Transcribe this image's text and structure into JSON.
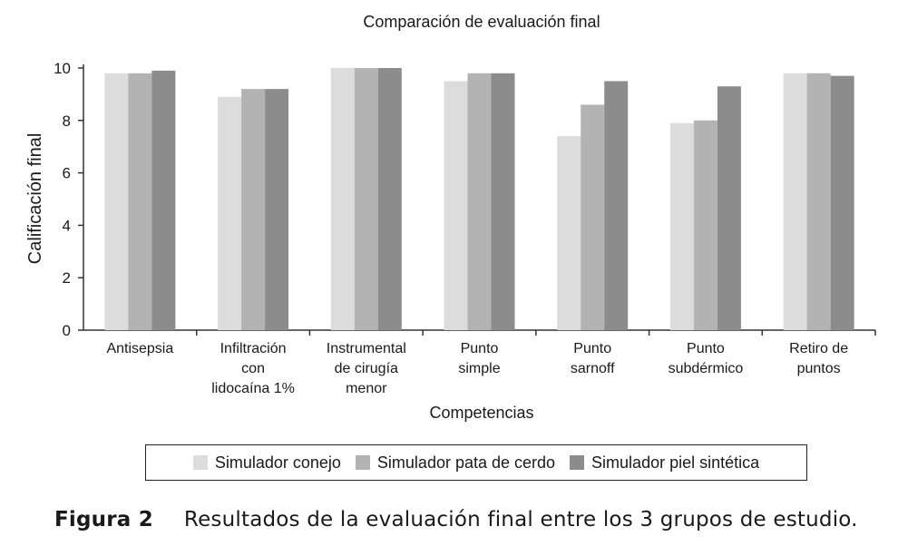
{
  "chart_data": {
    "type": "bar",
    "title": "Comparación de evaluación final",
    "xlabel": "Competencias",
    "ylabel": "Calificación final",
    "ylim": [
      0,
      10
    ],
    "yticks": [
      0,
      2,
      4,
      6,
      8,
      10
    ],
    "grid": false,
    "legend_position": "bottom",
    "categories": [
      [
        "Antisepsia"
      ],
      [
        "Infiltración",
        "con",
        "lidocaína 1%"
      ],
      [
        "Instrumental",
        "de cirugía",
        "menor"
      ],
      [
        "Punto",
        "simple"
      ],
      [
        "Punto",
        "sarnoff"
      ],
      [
        "Punto",
        "subdérmico"
      ],
      [
        "Retiro de",
        "puntos"
      ]
    ],
    "series": [
      {
        "name": "Simulador conejo",
        "color": "#dcdcdc",
        "values": [
          9.8,
          8.9,
          10.0,
          9.5,
          7.4,
          7.9,
          9.8
        ]
      },
      {
        "name": "Simulador pata de cerdo",
        "color": "#b3b3b3",
        "values": [
          9.8,
          9.2,
          10.0,
          9.8,
          8.6,
          8.0,
          9.8
        ]
      },
      {
        "name": "Simulador piel sintética",
        "color": "#8c8c8c",
        "values": [
          9.9,
          9.2,
          10.0,
          9.8,
          9.5,
          9.3,
          9.7
        ]
      }
    ]
  },
  "caption": {
    "label": "Figura 2",
    "text": "Resultados de la evaluación final entre los 3 grupos de estudio."
  }
}
